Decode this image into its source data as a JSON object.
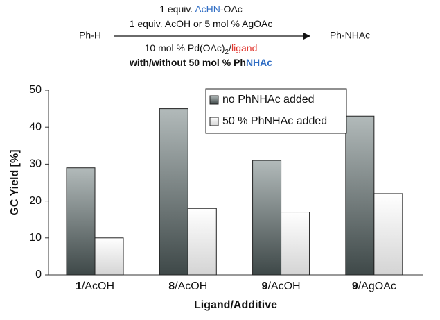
{
  "scheme": {
    "reactant": "Ph-H",
    "product": "Ph-NHAc",
    "above": [
      {
        "segments": [
          {
            "text": "1 equiv. "
          },
          {
            "text": "AcHN",
            "color": "#2f6dc4"
          },
          {
            "text": "-OAc"
          }
        ]
      },
      {
        "segments": [
          {
            "text": "1 equiv. AcOH or 5 mol % AgOAc"
          }
        ]
      }
    ],
    "below": [
      {
        "segments": [
          {
            "text": "10 mol % Pd(OAc)"
          },
          {
            "text": "2",
            "sub": true
          },
          {
            "text": "/"
          },
          {
            "text": "ligand",
            "color": "#e0332b"
          }
        ]
      },
      {
        "bold": true,
        "segments": [
          {
            "text": "with/without 50 mol % Ph"
          },
          {
            "text": "NHAc",
            "color": "#2f6dc4"
          }
        ]
      }
    ]
  },
  "chart_data": {
    "type": "bar",
    "x_label": "Ligand/Additive",
    "y_label": "GC Yield [%]",
    "categories": [
      "1/AcOH",
      "8/AcOH",
      "9/AcOH",
      "9/AgOAc"
    ],
    "series": [
      {
        "name": "no PhNHAc added",
        "color": "#3e4848",
        "values": [
          29,
          45,
          31,
          43
        ]
      },
      {
        "name": "50 % PhNHAc added",
        "color": "#d4d4d4",
        "values": [
          10,
          18,
          17,
          22
        ]
      }
    ],
    "ylim": [
      0,
      50
    ],
    "yticks": [
      0,
      10,
      20,
      30,
      40,
      50
    ],
    "legend": "top-right"
  }
}
